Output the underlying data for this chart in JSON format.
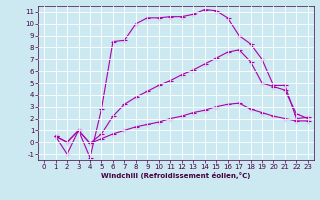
{
  "xlabel": "Windchill (Refroidissement éolien,°C)",
  "background_color": "#cce8f0",
  "line_color": "#aa00aa",
  "xlim": [
    -0.5,
    23.5
  ],
  "ylim": [
    -1.5,
    11.5
  ],
  "xticks": [
    0,
    1,
    2,
    3,
    4,
    5,
    6,
    7,
    8,
    9,
    10,
    11,
    12,
    13,
    14,
    15,
    16,
    17,
    18,
    19,
    20,
    21,
    22,
    23
  ],
  "yticks": [
    -1,
    0,
    1,
    2,
    3,
    4,
    5,
    6,
    7,
    8,
    9,
    10,
    11
  ],
  "line1_x": [
    1,
    2,
    3,
    4,
    5,
    6,
    7,
    8,
    9,
    10,
    11,
    12,
    13,
    14,
    15,
    16,
    17,
    18,
    19,
    20,
    21,
    22,
    23
  ],
  "line1_y": [
    0.5,
    -1.0,
    1.0,
    -1.3,
    2.8,
    8.5,
    8.6,
    10.0,
    10.5,
    10.5,
    10.6,
    10.6,
    10.8,
    11.2,
    11.1,
    10.5,
    9.0,
    8.3,
    7.0,
    4.8,
    4.8,
    2.0,
    2.1
  ],
  "line2_x": [
    1,
    2,
    3,
    4,
    5,
    6,
    7,
    8,
    9,
    10,
    11,
    12,
    13,
    14,
    15,
    16,
    17,
    18,
    19,
    20,
    21,
    22,
    23
  ],
  "line2_y": [
    0.5,
    0.0,
    1.0,
    -0.1,
    0.7,
    2.2,
    3.2,
    3.8,
    4.3,
    4.8,
    5.2,
    5.7,
    6.1,
    6.6,
    7.1,
    7.6,
    7.8,
    6.8,
    5.0,
    4.7,
    4.4,
    2.4,
    2.0
  ],
  "line3_x": [
    1,
    2,
    3,
    4,
    5,
    6,
    7,
    8,
    9,
    10,
    11,
    12,
    13,
    14,
    15,
    16,
    17,
    18,
    19,
    20,
    21,
    22,
    23
  ],
  "line3_y": [
    0.5,
    0.0,
    1.0,
    -0.1,
    0.3,
    0.7,
    1.0,
    1.3,
    1.5,
    1.7,
    2.0,
    2.2,
    2.5,
    2.7,
    3.0,
    3.2,
    3.3,
    2.8,
    2.5,
    2.2,
    2.0,
    1.8,
    1.8
  ],
  "marker_size": 2,
  "linewidth": 0.8,
  "tick_fontsize": 5,
  "xlabel_fontsize": 5,
  "grid_color": "#ffffff",
  "grid_linewidth": 0.6,
  "spine_color": "#440044",
  "tick_color": "#440044",
  "label_color": "#440044"
}
